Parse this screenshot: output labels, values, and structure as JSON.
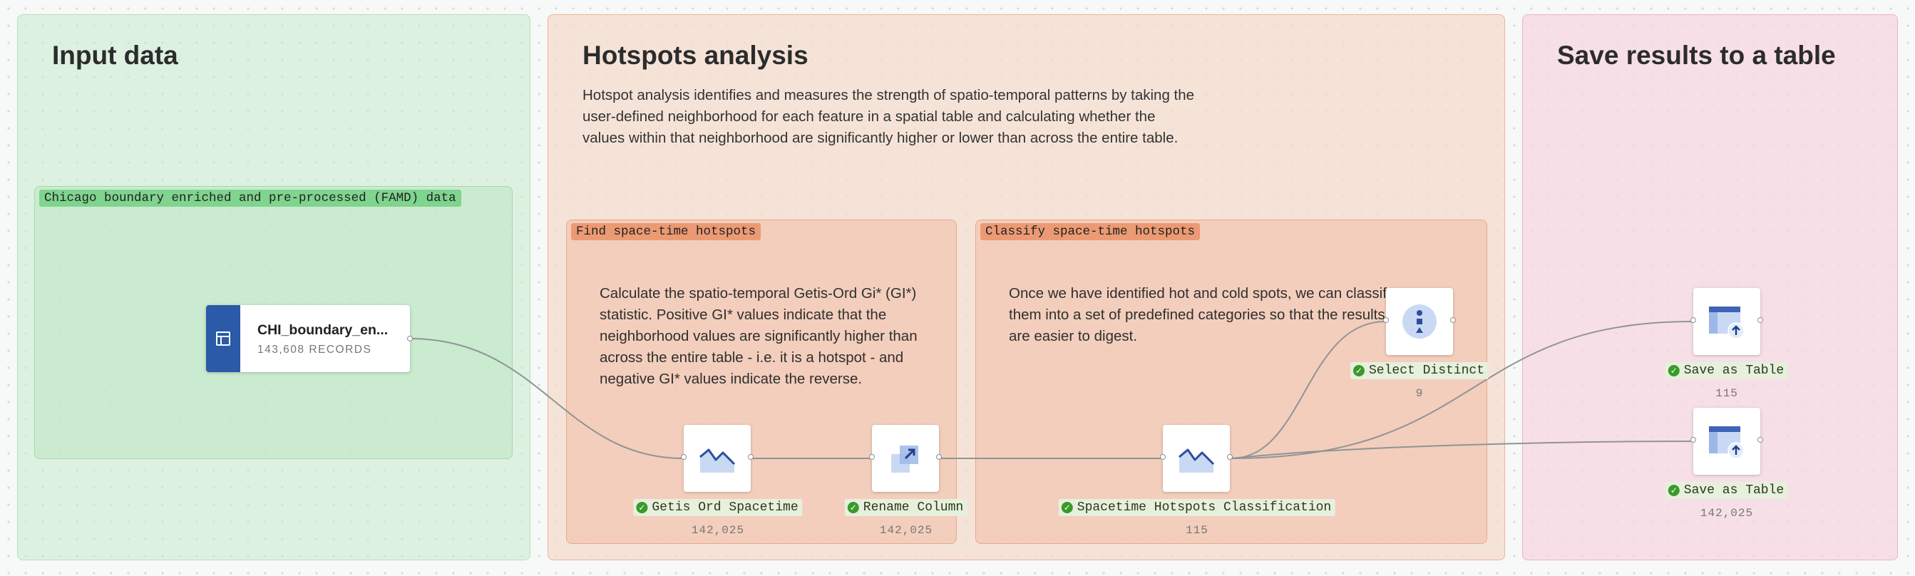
{
  "sections": {
    "input": {
      "title": "Input data"
    },
    "hotspots": {
      "title": "Hotspots analysis",
      "description": "Hotspot analysis identifies and measures the strength of spatio-temporal patterns by taking the user-defined neighborhood for each feature in a spatial table and calculating whether the values within that neighborhood are significantly higher or lower than across the entire table."
    },
    "save": {
      "title": "Save results to a table"
    }
  },
  "groups": {
    "input_group": {
      "label": "Chicago boundary enriched and pre-processed (FAMD) data"
    },
    "find": {
      "label": "Find space-time hotspots",
      "description": "Calculate the spatio-temporal Getis-Ord Gi* (GI*) statistic. Positive GI* values indicate that the neighborhood values are significantly higher than across the entire table - i.e. it is a hotspot - and negative GI* values indicate the reverse."
    },
    "classify": {
      "label": "Classify space-time hotspots",
      "description": "Once we have identified hot and cold spots, we can classify them into a set of predefined categories so that the results are easier to digest."
    }
  },
  "source": {
    "name": "CHI_boundary_en...",
    "records": "143,608 RECORDS",
    "icon": "table-icon"
  },
  "nodes": {
    "getis": {
      "label": "Getis Ord Spacetime",
      "count": "142,025",
      "icon": "line-chart-icon"
    },
    "rename": {
      "label": "Rename Column",
      "count": "142,025",
      "icon": "rename-icon"
    },
    "classification": {
      "label": "Spacetime Hotspots Classification",
      "count": "115",
      "icon": "line-chart-icon"
    },
    "distinct": {
      "label": "Select Distinct",
      "count": "9",
      "icon": "distinct-icon"
    },
    "save1": {
      "label": "Save as Table",
      "count": "115",
      "icon": "save-table-icon"
    },
    "save2": {
      "label": "Save as Table",
      "count": "142,025",
      "icon": "save-table-icon"
    }
  },
  "colors": {
    "edge": "#8f9496",
    "success": "#3a9a2a",
    "source_bar": "#2a5aa8",
    "node_icon": "#3f63b8"
  }
}
